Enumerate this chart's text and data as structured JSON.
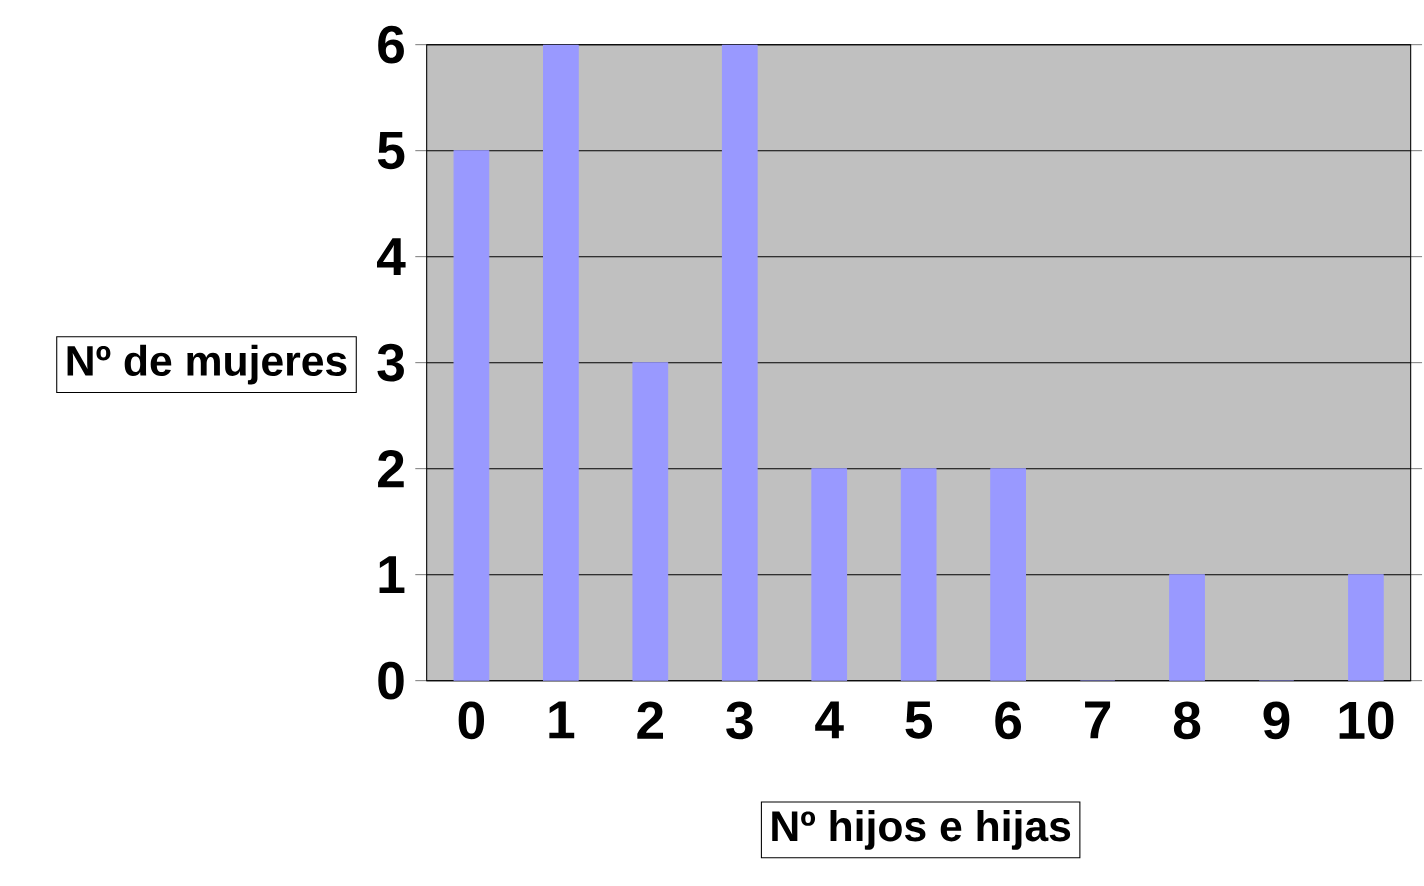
{
  "chart_data": {
    "type": "bar",
    "xlabel": "Nº hijos e hijas",
    "ylabel": "Nº de mujeres",
    "categories": [
      "0",
      "1",
      "2",
      "3",
      "4",
      "5",
      "6",
      "7",
      "8",
      "9",
      "10"
    ],
    "values": [
      5,
      6,
      3,
      6,
      2,
      2,
      2,
      0,
      1,
      0,
      1
    ],
    "color": "#9999ff",
    "ylim": [
      0,
      6
    ],
    "yticks": [
      0,
      1,
      2,
      3,
      4,
      5,
      6
    ],
    "grid": "y"
  }
}
